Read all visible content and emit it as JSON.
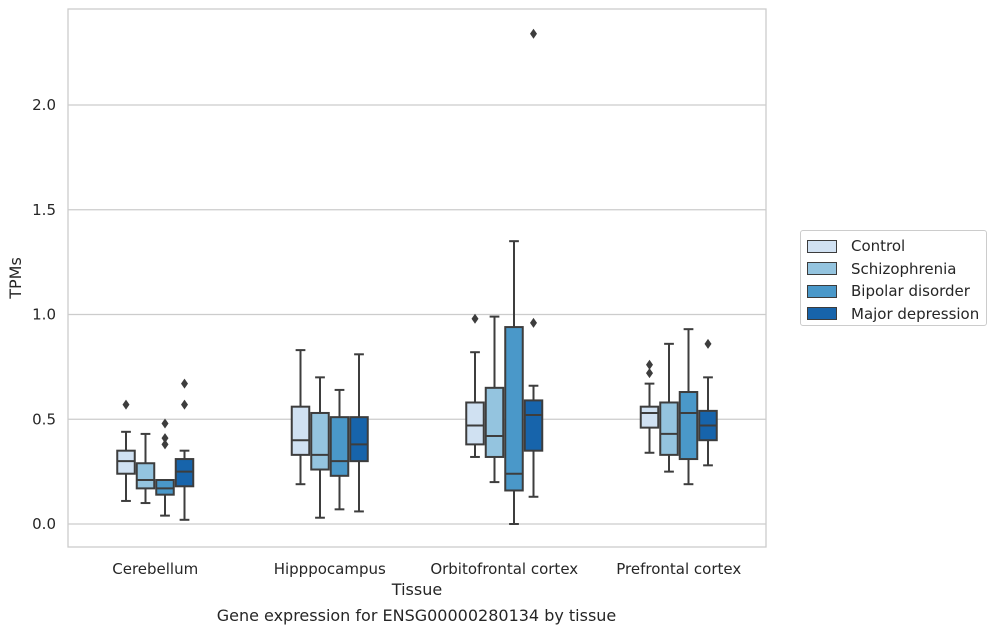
{
  "chart_data": {
    "type": "box",
    "xlabel": "Tissue",
    "ylabel": "TPMs",
    "ylim": [
      -0.11,
      2.47
    ],
    "yticks": [
      0.0,
      0.5,
      1.0,
      1.5,
      2.0
    ],
    "ytick_labels": [
      "0.0",
      "0.5",
      "1.0",
      "1.5",
      "2.0"
    ],
    "grid": true,
    "legend_position": "outside-right",
    "categories": [
      "Cerebellum",
      "Hipppocampus",
      "Orbitofrontal cortex",
      "Prefrontal cortex"
    ],
    "series": [
      {
        "name": "Control",
        "color": "#d0e1f2",
        "boxes": [
          {
            "whisker_low": 0.11,
            "q1": 0.24,
            "median": 0.3,
            "q3": 0.35,
            "whisker_high": 0.44,
            "outliers": [
              0.57
            ]
          },
          {
            "whisker_low": 0.19,
            "q1": 0.33,
            "median": 0.4,
            "q3": 0.56,
            "whisker_high": 0.83,
            "outliers": []
          },
          {
            "whisker_low": 0.32,
            "q1": 0.38,
            "median": 0.47,
            "q3": 0.58,
            "whisker_high": 0.82,
            "outliers": [
              0.98
            ]
          },
          {
            "whisker_low": 0.34,
            "q1": 0.46,
            "median": 0.53,
            "q3": 0.56,
            "whisker_high": 0.67,
            "outliers": [
              0.72,
              0.76
            ]
          }
        ]
      },
      {
        "name": "Schizophrenia",
        "color": "#94c4df",
        "boxes": [
          {
            "whisker_low": 0.1,
            "q1": 0.17,
            "median": 0.21,
            "q3": 0.29,
            "whisker_high": 0.43,
            "outliers": []
          },
          {
            "whisker_low": 0.03,
            "q1": 0.26,
            "median": 0.33,
            "q3": 0.53,
            "whisker_high": 0.7,
            "outliers": []
          },
          {
            "whisker_low": 0.2,
            "q1": 0.32,
            "median": 0.42,
            "q3": 0.65,
            "whisker_high": 0.99,
            "outliers": []
          },
          {
            "whisker_low": 0.25,
            "q1": 0.33,
            "median": 0.43,
            "q3": 0.58,
            "whisker_high": 0.86,
            "outliers": []
          }
        ]
      },
      {
        "name": "Bipolar disorder",
        "color": "#4a98c9",
        "boxes": [
          {
            "whisker_low": 0.04,
            "q1": 0.14,
            "median": 0.17,
            "q3": 0.21,
            "whisker_high": 0.21,
            "outliers": [
              0.38,
              0.41,
              0.48
            ]
          },
          {
            "whisker_low": 0.07,
            "q1": 0.23,
            "median": 0.3,
            "q3": 0.51,
            "whisker_high": 0.64,
            "outliers": []
          },
          {
            "whisker_low": 0.0,
            "q1": 0.16,
            "median": 0.24,
            "q3": 0.94,
            "whisker_high": 1.35,
            "outliers": []
          },
          {
            "whisker_low": 0.19,
            "q1": 0.31,
            "median": 0.53,
            "q3": 0.63,
            "whisker_high": 0.93,
            "outliers": []
          }
        ]
      },
      {
        "name": "Major depression",
        "color": "#1764ab",
        "boxes": [
          {
            "whisker_low": 0.02,
            "q1": 0.18,
            "median": 0.25,
            "q3": 0.31,
            "whisker_high": 0.35,
            "outliers": [
              0.57,
              0.67
            ]
          },
          {
            "whisker_low": 0.06,
            "q1": 0.3,
            "median": 0.38,
            "q3": 0.51,
            "whisker_high": 0.81,
            "outliers": []
          },
          {
            "whisker_low": 0.13,
            "q1": 0.35,
            "median": 0.52,
            "q3": 0.59,
            "whisker_high": 0.66,
            "outliers": [
              0.96,
              2.34
            ]
          },
          {
            "whisker_low": 0.28,
            "q1": 0.4,
            "median": 0.47,
            "q3": 0.54,
            "whisker_high": 0.7,
            "outliers": [
              0.86
            ]
          }
        ]
      }
    ],
    "caption": "Gene expression for ENSG00000280134 by tissue"
  }
}
